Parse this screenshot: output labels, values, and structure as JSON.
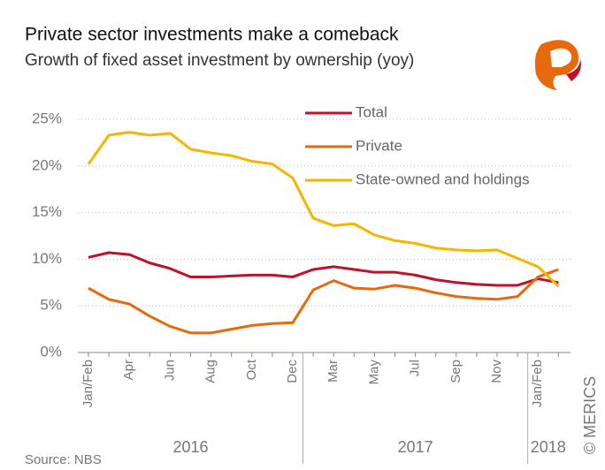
{
  "chart_data": {
    "type": "line",
    "title": "Private sector investments make a comeback",
    "subtitle": "Growth of fixed asset investment by ownership (yoy)",
    "source": "Source: NBS",
    "credit": "© MERICS",
    "categories": [
      "Jan/Feb",
      null,
      "Apr",
      null,
      "Jun",
      null,
      "Aug",
      null,
      "Oct",
      null,
      "Dec",
      null,
      "Mar",
      null,
      "May",
      null,
      "Jul",
      null,
      "Sep",
      null,
      "Nov",
      null,
      "Jan/Feb",
      null
    ],
    "x_groups": [
      {
        "label": "2016",
        "categories": 11
      },
      {
        "label": "2017",
        "categories": 11
      },
      {
        "label": "2018",
        "categories": 2
      }
    ],
    "series": [
      {
        "name": "Total",
        "color": "#c0102a",
        "values": [
          10.2,
          10.7,
          10.5,
          9.6,
          9.0,
          8.1,
          8.1,
          8.2,
          8.3,
          8.3,
          8.1,
          8.9,
          9.2,
          8.9,
          8.6,
          8.6,
          8.3,
          7.8,
          7.5,
          7.3,
          7.2,
          7.2,
          7.9,
          7.5
        ]
      },
      {
        "name": "Private",
        "color": "#e8690b",
        "values": [
          6.9,
          5.7,
          5.2,
          3.9,
          2.8,
          2.1,
          2.1,
          2.5,
          2.9,
          3.1,
          3.2,
          6.7,
          7.7,
          6.9,
          6.8,
          7.2,
          6.9,
          6.4,
          6.0,
          5.8,
          5.7,
          6.0,
          8.1,
          8.9
        ]
      },
      {
        "name": "State-owned and holdings",
        "color": "#f7b500",
        "values": [
          20.2,
          23.3,
          23.6,
          23.3,
          23.5,
          21.8,
          21.4,
          21.1,
          20.5,
          20.2,
          18.7,
          14.4,
          13.6,
          13.8,
          12.6,
          12.0,
          11.7,
          11.2,
          11.0,
          10.9,
          11.0,
          10.1,
          9.2,
          7.1
        ]
      }
    ],
    "ylim": [
      0,
      25
    ],
    "yticks": [
      {
        "value": 0,
        "label": "0%"
      },
      {
        "value": 5,
        "label": "5%"
      },
      {
        "value": 10,
        "label": "10%"
      },
      {
        "value": 15,
        "label": "15%"
      },
      {
        "value": 20,
        "label": "20%"
      },
      {
        "value": 25,
        "label": "25%"
      }
    ],
    "grid": true,
    "legend": "top-right"
  }
}
